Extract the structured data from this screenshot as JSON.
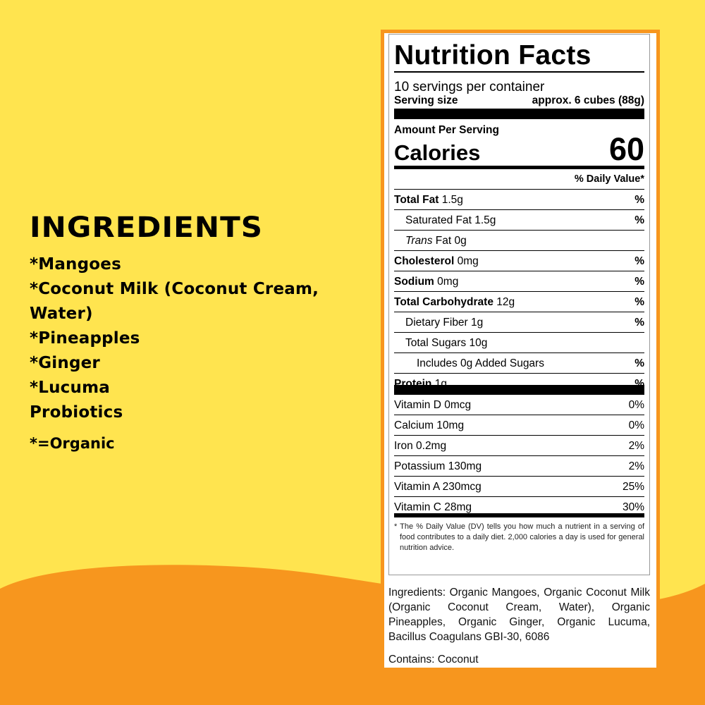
{
  "colors": {
    "background": "#FFE44F",
    "accent": "#F7961E"
  },
  "left": {
    "heading": "INGREDIENTS",
    "items": [
      "*Mangoes",
      "*Coconut Milk (Coconut Cream,",
      "Water)",
      "*Pineapples",
      "*Ginger",
      "*Lucuma",
      "Probiotics"
    ],
    "note": "*=Organic"
  },
  "label": {
    "title": "Nutrition Facts",
    "servings": "10 servings per container",
    "serving_size_label": "Serving size",
    "serving_size_value": "approx. 6 cubes (88g)",
    "amount_per_serving": "Amount Per Serving",
    "calories_label": "Calories",
    "calories_value": "60",
    "dv_header": "% Daily Value*",
    "nutrients": [
      {
        "name": "Total Fat",
        "amount": "1.5g",
        "dv": "%",
        "bold": true,
        "indent": 0
      },
      {
        "name": "Saturated Fat",
        "amount": "1.5g",
        "dv": "%",
        "bold": false,
        "indent": 1
      },
      {
        "name": "Trans",
        "name2": "Fat",
        "amount": "0g",
        "dv": "",
        "bold": false,
        "indent": 1
      },
      {
        "name": "Cholesterol",
        "amount": "0mg",
        "dv": "%",
        "bold": true,
        "indent": 0
      },
      {
        "name": "Sodium",
        "amount": "0mg",
        "dv": "%",
        "bold": true,
        "indent": 0
      },
      {
        "name": "Total Carbohydrate",
        "amount": "12g",
        "dv": "%",
        "bold": true,
        "indent": 0
      },
      {
        "name": "Dietary Fiber",
        "amount": "1g",
        "dv": "%",
        "bold": false,
        "indent": 1
      },
      {
        "name": "Total Sugars",
        "amount": "10g",
        "dv": "",
        "bold": false,
        "indent": 1
      },
      {
        "name": "Includes 0g Added Sugars",
        "amount": "",
        "dv": "%",
        "bold": false,
        "indent": 2
      },
      {
        "name": "Protein",
        "amount": "1g",
        "dv": "%",
        "bold": true,
        "indent": 0
      }
    ],
    "vitamins": [
      {
        "name": "Vitamin D 0mcg",
        "dv": "0%"
      },
      {
        "name": "Calcium 10mg",
        "dv": "0%"
      },
      {
        "name": "Iron 0.2mg",
        "dv": "2%"
      },
      {
        "name": "Potassium 130mg",
        "dv": "2%"
      },
      {
        "name": "Vitamin A 230mcg",
        "dv": "25%"
      },
      {
        "name": "Vitamin C 28mg",
        "dv": "30%"
      }
    ],
    "footnote": "* The % Daily Value (DV) tells you how much a nutrient in a serving of food contributes to a daily diet. 2,000 calories a day is used for general nutrition advice."
  },
  "ingredients_text": "Ingredients: Organic Mangoes, Organic Coconut Milk (Organic Coconut Cream, Water), Organic Pineapples, Organic Ginger, Organic Lucuma, Bacillus Coagulans GBI-30, 6086",
  "contains": "Contains: Coconut"
}
